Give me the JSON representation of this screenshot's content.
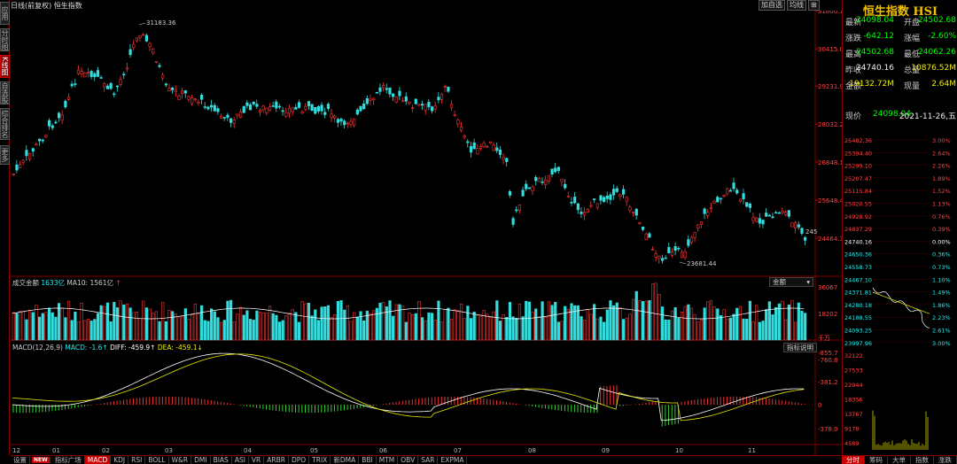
{
  "title": "日线(前复权)  恒生指数",
  "top_buttons": [
    "加自选",
    "均线",
    "⊞"
  ],
  "left_tabs": [
    {
      "label": "应用",
      "active": false
    },
    {
      "label": "分时图",
      "active": false
    },
    {
      "label": "K线图",
      "active": true
    },
    {
      "label": "自选股",
      "active": false
    },
    {
      "label": "综合排名",
      "active": false
    },
    {
      "label": "更多",
      "active": false
    }
  ],
  "price_axis": [
    "31600.13",
    "30415.03",
    "29231.93",
    "28032.24",
    "26848.14",
    "25648.45",
    "24464.35"
  ],
  "max_label": "31183.36",
  "min_label": "23681.44",
  "last_label": "245",
  "volume_legend": {
    "prefix": "成交金额",
    "amt": "1633亿",
    "ma_label": "MA10:",
    "ma_value": "1561亿",
    "arrow": "↑"
  },
  "volume_select": "金额",
  "volume_axis": [
    "36067",
    "18202",
    "千万"
  ],
  "macd_legend": {
    "name": "MACD(12,26,9)",
    "macd": "MACD: -1.6↑",
    "diff": "DIFF: -459.9↑",
    "dea": "DEA: -459.1↓"
  },
  "macd_button": "指标说明",
  "macd_axis": [
    "-855.7",
    "-760.8",
    "-381.2",
    "0",
    "-378.0"
  ],
  "months": [
    "12",
    "01",
    "02",
    "03",
    "04",
    "05",
    "06",
    "07",
    "08",
    "09",
    "10",
    "11"
  ],
  "bottom_tabs": [
    {
      "label": "设置",
      "active": false,
      "new": false
    },
    {
      "label": "NEW",
      "active": false,
      "new": true
    },
    {
      "label": "指标广场",
      "active": false,
      "new": false
    },
    {
      "label": "MACD",
      "active": true,
      "new": false
    },
    {
      "label": "KDJ",
      "active": false,
      "new": false
    },
    {
      "label": "RSI",
      "active": false,
      "new": false
    },
    {
      "label": "BOLL",
      "active": false,
      "new": false
    },
    {
      "label": "W&R",
      "active": false,
      "new": false
    },
    {
      "label": "DMI",
      "active": false,
      "new": false
    },
    {
      "label": "BIAS",
      "active": false,
      "new": false
    },
    {
      "label": "ASI",
      "active": false,
      "new": false
    },
    {
      "label": "VR",
      "active": false,
      "new": false
    },
    {
      "label": "ARBR",
      "active": false,
      "new": false
    },
    {
      "label": "DPO",
      "active": false,
      "new": false
    },
    {
      "label": "TRIX",
      "active": false,
      "new": false
    },
    {
      "label": "新DMA",
      "active": false,
      "new": false
    },
    {
      "label": "BBI",
      "active": false,
      "new": false
    },
    {
      "label": "MTM",
      "active": false,
      "new": false
    },
    {
      "label": "OBV",
      "active": false,
      "new": false
    },
    {
      "label": "SAR",
      "active": false,
      "new": false
    },
    {
      "label": "EXPMA",
      "active": false,
      "new": false
    }
  ],
  "quote": {
    "title": "恒生指数 HSI",
    "rows": [
      {
        "l1": "最新",
        "v1": "24098.04",
        "c1": "grn",
        "l2": "开盘",
        "v2": "24502.68",
        "c2": "grn"
      },
      {
        "l1": "涨跌",
        "v1": "-642.12",
        "c1": "grn",
        "l2": "涨幅",
        "v2": "-2.60%",
        "c2": "grn"
      },
      {
        "l1": "最高",
        "v1": "24502.68",
        "c1": "grn",
        "l2": "最低",
        "v2": "24062.26",
        "c2": "grn"
      },
      {
        "l1": "昨收",
        "v1": "24740.16",
        "c1": "wht",
        "l2": "总量",
        "v2": "10876.52M",
        "c2": "yel"
      },
      {
        "l1": "金额",
        "v1": "19132.72M",
        "c1": "yel",
        "l2": "现量",
        "v2": "2.64M",
        "c2": "yel"
      }
    ],
    "now_label": "现价",
    "now_price": "24098.04",
    "now_date": "2021-11-26,五",
    "intraday_left": [
      "25482.36",
      "25394.40",
      "25299.10",
      "25207.47",
      "25115.84",
      "25020.55",
      "24928.92",
      "24837.29",
      "24740.16",
      "24650.36",
      "24558.73",
      "24467.10",
      "24371.81",
      "24280.18",
      "24188.55",
      "24093.25",
      "23997.96"
    ],
    "intraday_right": [
      "3.00%",
      "2.64%",
      "2.26%",
      "1.89%",
      "1.52%",
      "1.13%",
      "0.76%",
      "0.39%",
      "0.00%",
      "0.36%",
      "0.73%",
      "1.10%",
      "1.49%",
      "1.86%",
      "2.23%",
      "2.61%",
      "3.00%"
    ],
    "intraday_vol": [
      "32122",
      "27533",
      "22944",
      "18356",
      "13767",
      "9178",
      "4589"
    ]
  },
  "right_bottom_tabs": [
    {
      "label": "分时",
      "active": true
    },
    {
      "label": "筹码",
      "active": false
    },
    {
      "label": "大单",
      "active": false
    },
    {
      "label": "指数",
      "active": false
    },
    {
      "label": "涨跌",
      "active": false
    }
  ],
  "colors": {
    "up": "#ff3333",
    "down": "#33dddd",
    "ma": "#ffffff",
    "dea": "#e8e800",
    "grid": "#800000"
  }
}
